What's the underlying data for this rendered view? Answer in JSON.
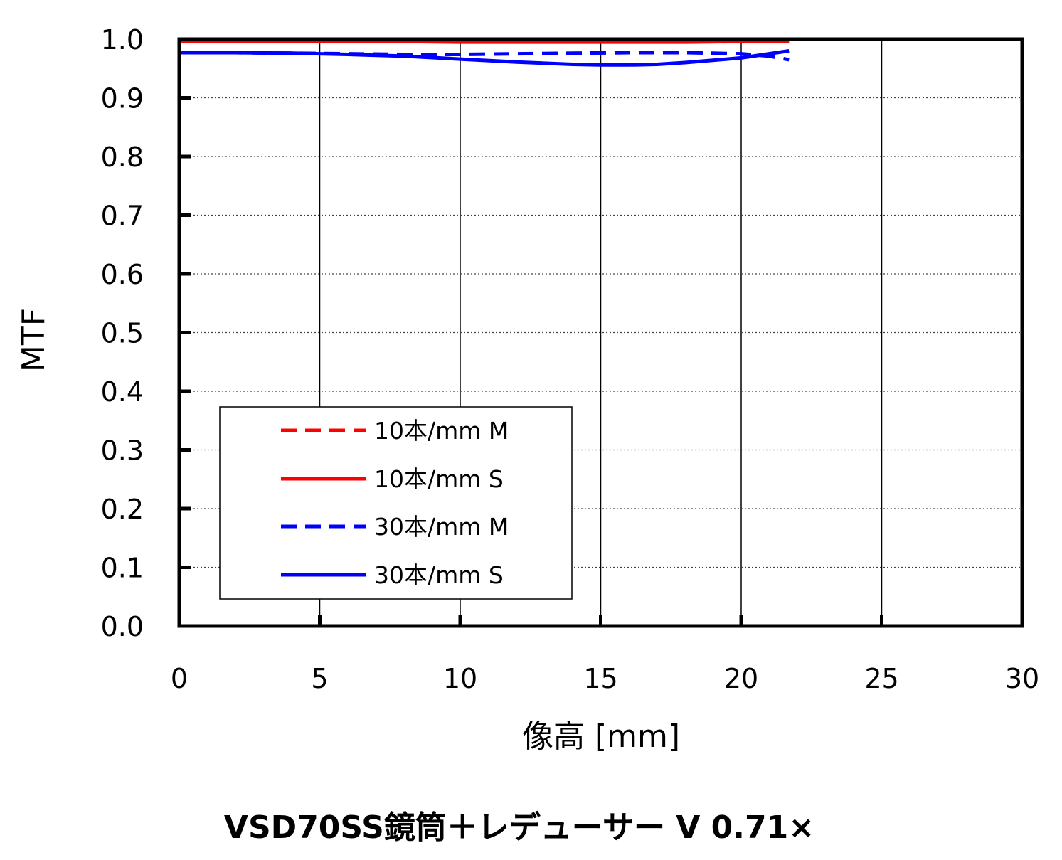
{
  "chart_data": {
    "type": "line",
    "title": "VSD70SS鏡筒＋レデューサー V 0.71×",
    "xlabel": "像高 [mm]",
    "ylabel": "MTF",
    "xlim": [
      0,
      30
    ],
    "ylim": [
      0,
      1.0
    ],
    "x_ticks": [
      "0",
      "5",
      "10",
      "15",
      "20",
      "25",
      "30"
    ],
    "y_ticks": [
      "0.0",
      "0.1",
      "0.2",
      "0.3",
      "0.4",
      "0.5",
      "0.6",
      "0.7",
      "0.8",
      "0.9",
      "1.0"
    ],
    "grid": "vertical solid, horizontal dotted",
    "legend_position": "lower-left",
    "series": [
      {
        "name": "10本/mm M",
        "color": "#ff0000",
        "dash": "dashed",
        "x": [
          0,
          2,
          4,
          6,
          8,
          10,
          12,
          14,
          16,
          18,
          20,
          21.7
        ],
        "y": [
          0.997,
          0.997,
          0.997,
          0.997,
          0.997,
          0.997,
          0.997,
          0.998,
          0.998,
          0.998,
          0.998,
          0.997
        ]
      },
      {
        "name": "10本/mm S",
        "color": "#ff0000",
        "dash": "solid",
        "x": [
          0,
          2,
          4,
          6,
          8,
          10,
          12,
          14,
          16,
          18,
          20,
          21.7
        ],
        "y": [
          0.996,
          0.996,
          0.996,
          0.996,
          0.996,
          0.995,
          0.995,
          0.995,
          0.995,
          0.995,
          0.996,
          0.996
        ]
      },
      {
        "name": "30本/mm M",
        "color": "#0000ff",
        "dash": "dashed",
        "x": [
          0,
          2,
          4,
          6,
          8,
          10,
          12,
          14,
          16,
          18,
          20,
          21,
          21.7
        ],
        "y": [
          0.977,
          0.977,
          0.976,
          0.975,
          0.974,
          0.974,
          0.975,
          0.976,
          0.977,
          0.977,
          0.975,
          0.971,
          0.965
        ]
      },
      {
        "name": "30本/mm S",
        "color": "#0000ff",
        "dash": "solid",
        "x": [
          0,
          2,
          4,
          6,
          8,
          10,
          12,
          14,
          15,
          16,
          17,
          18,
          20,
          21.7
        ],
        "y": [
          0.977,
          0.977,
          0.976,
          0.974,
          0.971,
          0.966,
          0.961,
          0.957,
          0.956,
          0.956,
          0.957,
          0.96,
          0.968,
          0.98
        ]
      }
    ]
  }
}
